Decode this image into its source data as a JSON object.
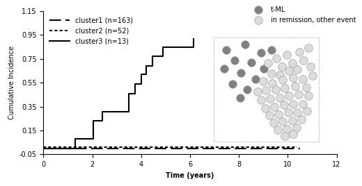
{
  "chart_data": [
    {
      "type": "line",
      "x_label": "Time (years)",
      "y_label": "Cumulative Incidence",
      "xlim": [
        0,
        12
      ],
      "xticks": [
        0,
        2,
        4,
        6,
        8,
        10,
        12
      ],
      "ylim": [
        -0.05,
        1.15
      ],
      "yticks": [
        -0.05,
        0.15,
        0.35,
        0.55,
        0.75,
        0.95,
        1.15
      ],
      "legend": "upper left",
      "series": [
        {
          "name": "cluster1 (n=163)",
          "color": "#000000",
          "line_style": "dashed",
          "x": [
            0,
            10.5
          ],
          "values": [
            0.0,
            0.0
          ]
        },
        {
          "name": "cluster2 (n=52)",
          "color": "#000000",
          "line_style": "dotted",
          "x": [
            0,
            10.4
          ],
          "values": [
            0.01,
            0.01
          ]
        },
        {
          "name": "cluster3 (n=13)",
          "color": "#000000",
          "line_style": "solid",
          "x": [
            0,
            1.3,
            2.05,
            2.4,
            3.5,
            3.75,
            4.0,
            4.2,
            4.45,
            4.9,
            6.15
          ],
          "values": [
            0.0,
            0.08,
            0.23,
            0.31,
            0.46,
            0.54,
            0.62,
            0.69,
            0.77,
            0.85,
            0.92
          ]
        }
      ]
    },
    {
      "type": "scatter",
      "tick_labels": false,
      "xlim": [
        0,
        10
      ],
      "ylim": [
        0,
        10
      ],
      "legend": "upper right",
      "series": [
        {
          "name": "t-ML",
          "color": "#808080",
          "marker": "circle",
          "x": [
            1.2,
            2.0,
            3.0,
            1.0,
            2.6,
            3.6,
            1.8,
            4.5,
            3.2,
            4.0,
            2.5,
            4.8,
            5.5
          ],
          "values": [
            8.8,
            7.8,
            9.3,
            7.0,
            6.6,
            7.6,
            5.5,
            8.5,
            5.0,
            6.0,
            4.2,
            7.0,
            8.8
          ]
        },
        {
          "name": "in remission, other event",
          "color": "#dcdcdc",
          "marker": "circle",
          "x": [
            5.2,
            6.0,
            7.0,
            8.2,
            9.0,
            6.5,
            7.5,
            8.6,
            5.5,
            6.3,
            7.2,
            8.0,
            9.2,
            4.7,
            5.6,
            6.6,
            7.6,
            8.5,
            9.4,
            4.2,
            5.0,
            5.9,
            6.8,
            7.8,
            8.8,
            4.5,
            5.4,
            6.3,
            7.2,
            8.1,
            9.0,
            4.9,
            5.8,
            6.7,
            7.6,
            8.5,
            5.3,
            6.2,
            7.1,
            8.0,
            8.9,
            5.7,
            6.6,
            7.5,
            8.4,
            6.1,
            7.0,
            7.9,
            6.8,
            7.6
          ],
          "values": [
            7.5,
            8.0,
            8.3,
            8.6,
            9.0,
            7.2,
            7.5,
            7.8,
            6.5,
            6.4,
            6.8,
            6.9,
            7.2,
            5.8,
            5.6,
            5.9,
            6.1,
            6.0,
            6.3,
            4.8,
            4.9,
            5.0,
            5.1,
            5.3,
            5.2,
            4.0,
            4.1,
            4.2,
            4.4,
            4.5,
            4.4,
            3.2,
            3.3,
            3.5,
            3.6,
            3.6,
            2.5,
            2.6,
            2.8,
            2.8,
            2.9,
            1.8,
            1.9,
            2.0,
            2.1,
            1.1,
            1.2,
            1.3,
            0.5,
            0.7
          ]
        }
      ]
    }
  ]
}
